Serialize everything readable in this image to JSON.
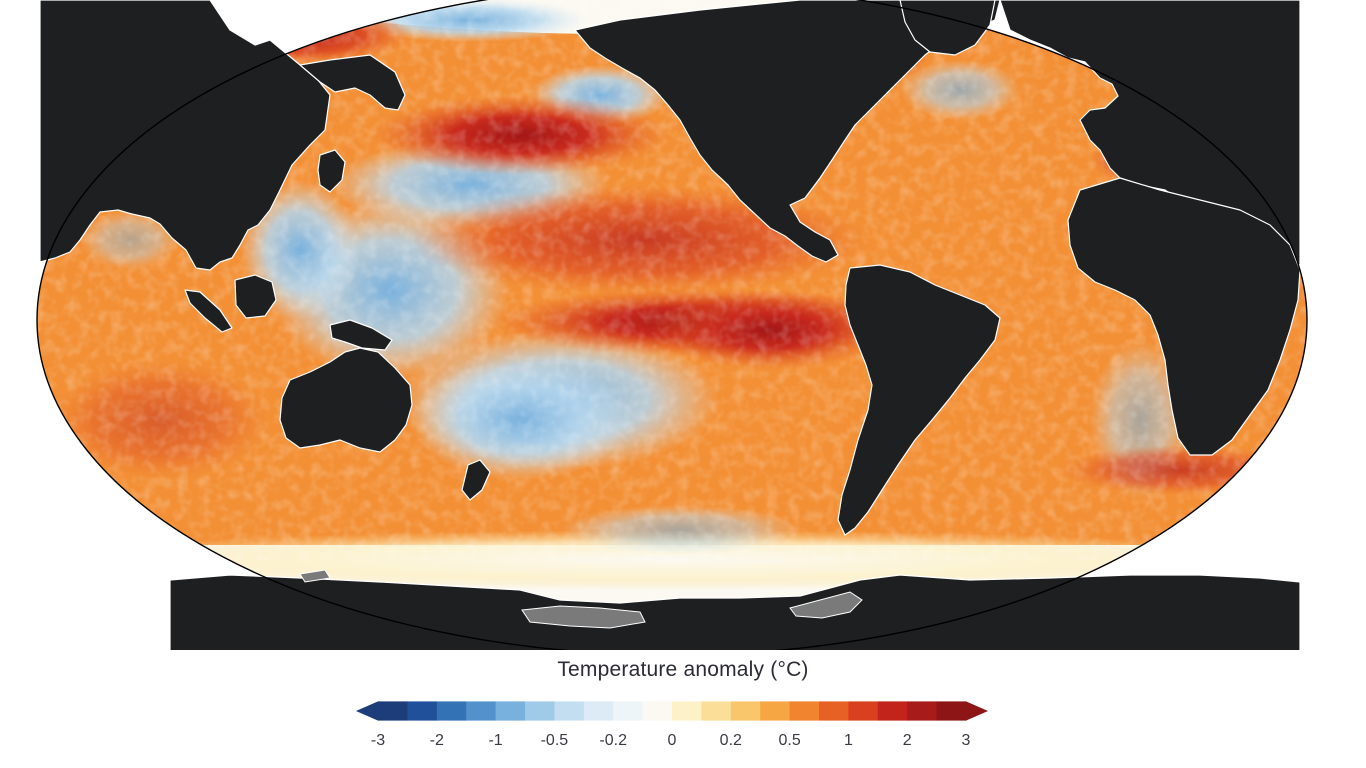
{
  "map": {
    "projection": "Robinson",
    "variable": "sea-surface temperature anomaly",
    "colors": {
      "land": "#1e1f21",
      "ice_shelf": "#7a7a7a",
      "coastline": "#ffffff",
      "frame": "#000000"
    }
  },
  "legend": {
    "title": "Temperature anomaly (°C)",
    "ticks": [
      {
        "label": "-3",
        "value": -3
      },
      {
        "label": "-2",
        "value": -2
      },
      {
        "label": "-1",
        "value": -1
      },
      {
        "label": "-0.5",
        "value": -0.5
      },
      {
        "label": "-0.2",
        "value": -0.2
      },
      {
        "label": "0",
        "value": 0
      },
      {
        "label": "0.2",
        "value": 0.2
      },
      {
        "label": "0.5",
        "value": 0.5
      },
      {
        "label": "1",
        "value": 1
      },
      {
        "label": "2",
        "value": 2
      },
      {
        "label": "3",
        "value": 3
      }
    ],
    "colors": [
      "#1c3d7a",
      "#21509a",
      "#3472b6",
      "#5391cc",
      "#79b1dd",
      "#9fcbe8",
      "#c2def0",
      "#dcebf5",
      "#eef5f9",
      "#fbf9f1",
      "#fdf1c8",
      "#fbdf99",
      "#f9c66c",
      "#f6a744",
      "#f1842f",
      "#e86124",
      "#d9401f",
      "#c2231b",
      "#a81b1b",
      "#8e1515"
    ],
    "extend": "both"
  }
}
